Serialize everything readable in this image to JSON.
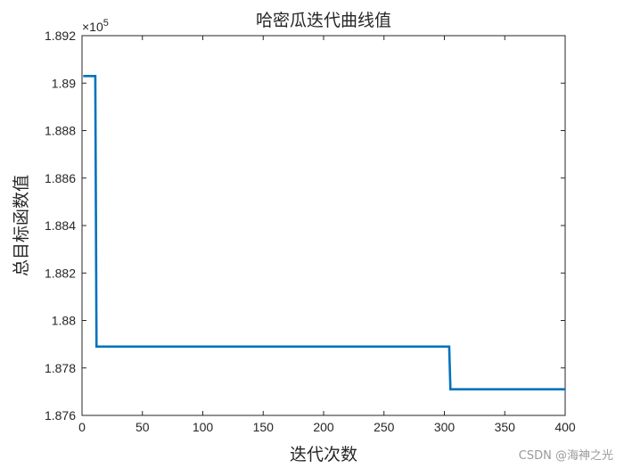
{
  "chart_data": {
    "type": "line",
    "title": "哈密瓜迭代曲线值",
    "xlabel": "迭代次数",
    "ylabel": "总目标函数值",
    "y_exponent_label": "×10",
    "y_exponent_power": "5",
    "xlim": [
      0,
      400
    ],
    "ylim": [
      1.876,
      1.892
    ],
    "x_ticks": [
      0,
      50,
      100,
      150,
      200,
      250,
      300,
      350,
      400
    ],
    "x_tick_labels": [
      "0",
      "50",
      "100",
      "150",
      "200",
      "250",
      "300",
      "350",
      "400"
    ],
    "y_ticks": [
      1.876,
      1.878,
      1.88,
      1.882,
      1.884,
      1.886,
      1.888,
      1.89,
      1.892
    ],
    "y_tick_labels": [
      "1.876",
      "1.878",
      "1.88",
      "1.882",
      "1.884",
      "1.886",
      "1.888",
      "1.89",
      "1.892"
    ],
    "grid": false,
    "line_color": "#0072BD",
    "series": [
      {
        "x": [
          1,
          11,
          12,
          304,
          305,
          400
        ],
        "y": [
          1.8903,
          1.8903,
          1.8789,
          1.8789,
          1.8771,
          1.8771
        ]
      }
    ]
  },
  "watermark": "CSDN @海神之光"
}
